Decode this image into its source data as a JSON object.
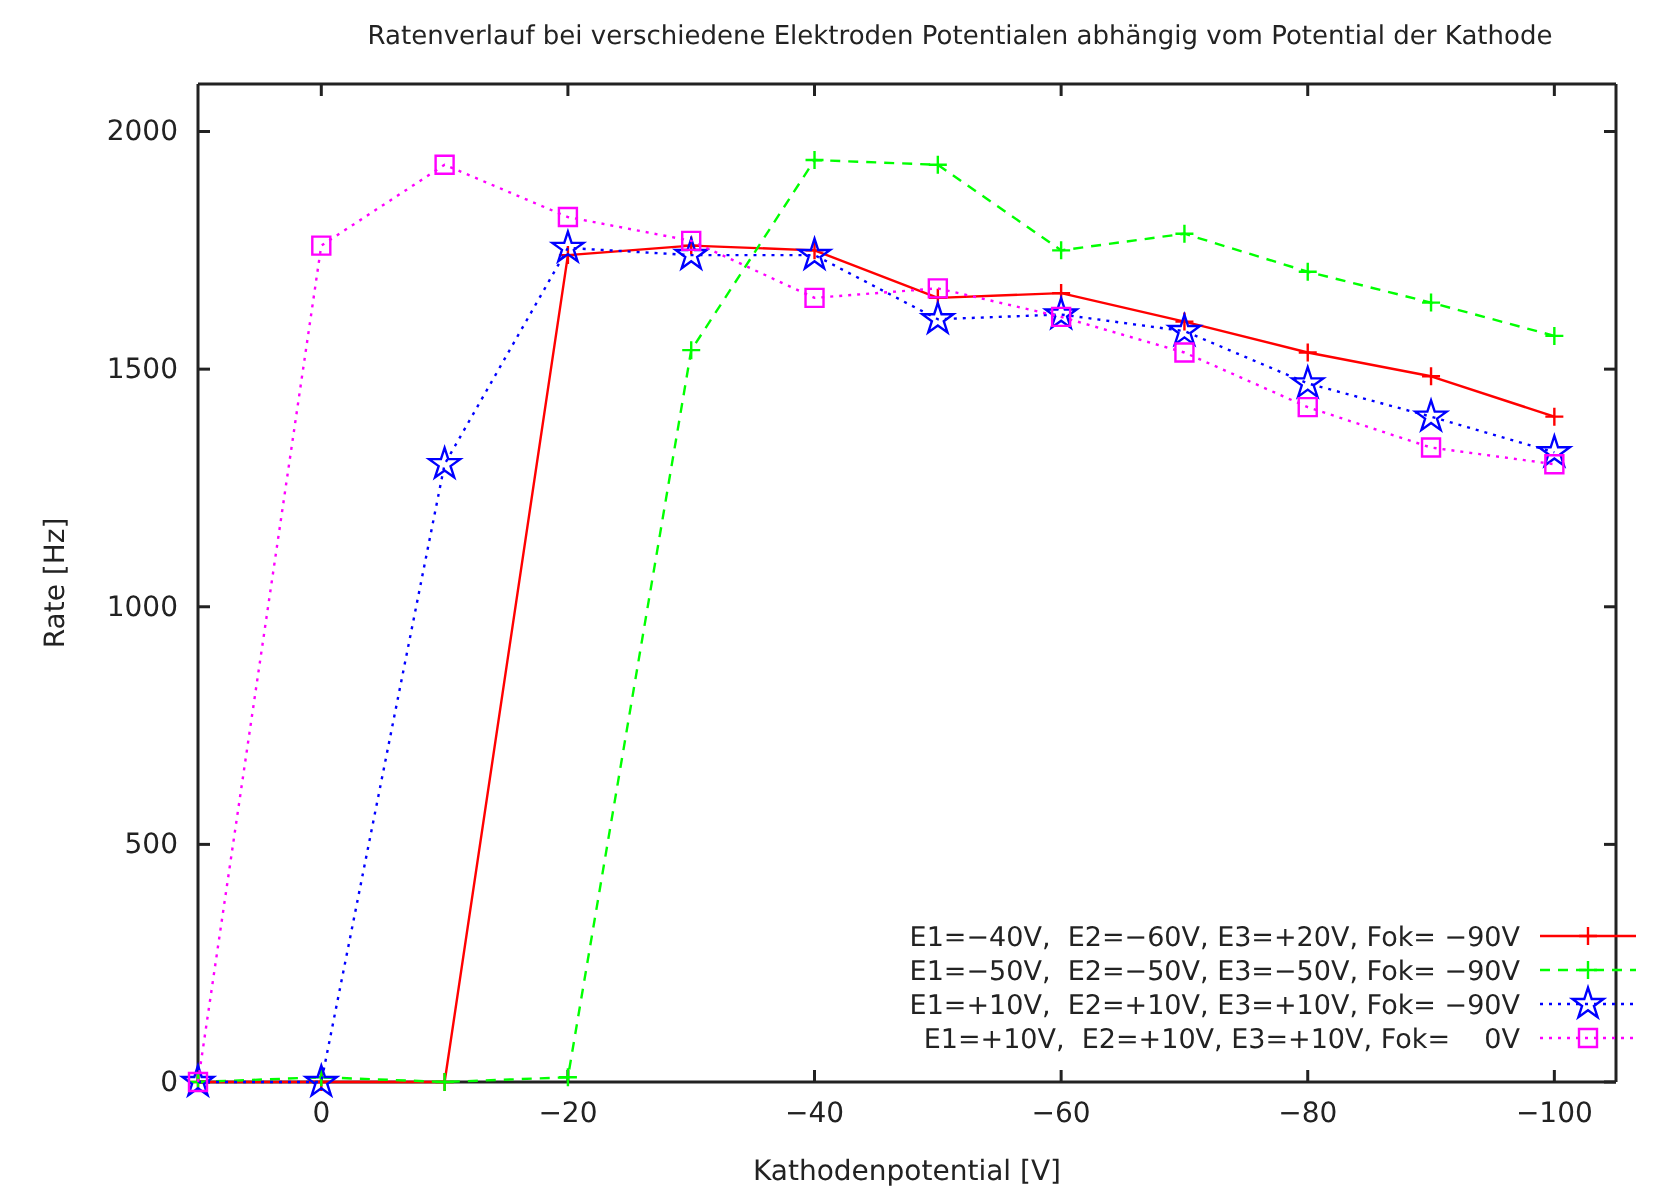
{
  "chart_data": {
    "type": "line",
    "title": "Ratenverlauf bei verschiedene Elektroden Potentialen abhängig vom Potential der Kathode",
    "xlabel": "Kathodenpotential [V]",
    "ylabel": "Rate [Hz]",
    "x": [
      10,
      0,
      -10,
      -20,
      -30,
      -40,
      -50,
      -60,
      -70,
      -80,
      -90,
      -100
    ],
    "xlim": [
      10,
      -105
    ],
    "xticks": [
      0,
      {
        "value": -20,
        "label": "−20"
      },
      {
        "value": -40,
        "label": "−40"
      },
      {
        "value": -60,
        "label": "−60"
      },
      {
        "value": -80,
        "label": "−80"
      },
      {
        "value": -100,
        "label": "−100"
      }
    ],
    "ylim": [
      0,
      2100
    ],
    "yticks": [
      0,
      500,
      1000,
      1500,
      2000
    ],
    "grid": false,
    "legend": "bottom right",
    "series": [
      {
        "name": "E1=−40V,  E2=−60V, E3=+20V, Fok= −90V",
        "color": "#ff0000",
        "marker": "cross",
        "line_style": "solid",
        "values": [
          0,
          0,
          0,
          1740,
          1760,
          1750,
          1650,
          1660,
          1600,
          1535,
          1485,
          1400
        ]
      },
      {
        "name": "E1=−50V,  E2=−50V, E3=−50V, Fok= −90V",
        "color": "#00ff00",
        "marker": "cross",
        "line_style": "dashed",
        "values": [
          0,
          10,
          0,
          10,
          1540,
          1940,
          1930,
          1750,
          1785,
          1705,
          1640,
          1570
        ]
      },
      {
        "name": "E1=+10V,  E2=+10V, E3=+10V, Fok= −90V",
        "color": "#0000ff",
        "marker": "star",
        "line_style": "dotted",
        "values": [
          0,
          0,
          1300,
          1755,
          1740,
          1740,
          1605,
          1615,
          1580,
          1470,
          1400,
          1325
        ]
      },
      {
        "name": "E1=+10V,  E2=+10V, E3=+10V, Fok=    0V",
        "color": "#ff00ff",
        "marker": "square",
        "line_style": "dotted",
        "values": [
          0,
          1760,
          1930,
          1820,
          1770,
          1650,
          1670,
          1610,
          1535,
          1420,
          1335,
          1300
        ]
      }
    ]
  }
}
